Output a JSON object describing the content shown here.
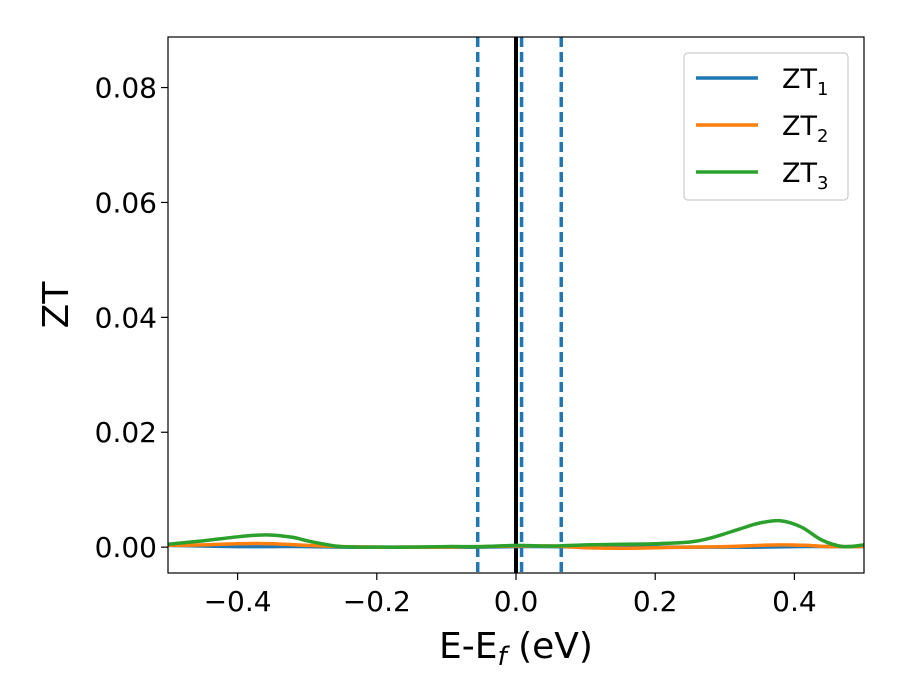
{
  "chart_data": {
    "type": "line",
    "title": "",
    "xlabel": {
      "main": "E-E",
      "sub": "f",
      "unit": " (eV)"
    },
    "ylabel": "ZT",
    "xlim": [
      -0.5,
      0.5
    ],
    "ylim": [
      -0.0045,
      0.0888
    ],
    "x_ticks": [
      {
        "value": -0.4,
        "label": "−0.4"
      },
      {
        "value": -0.2,
        "label": "−0.2"
      },
      {
        "value": 0.0,
        "label": "0.0"
      },
      {
        "value": 0.2,
        "label": "0.2"
      },
      {
        "value": 0.4,
        "label": "0.4"
      }
    ],
    "y_ticks": [
      {
        "value": 0.0,
        "label": "0.00"
      },
      {
        "value": 0.02,
        "label": "0.02"
      },
      {
        "value": 0.04,
        "label": "0.04"
      },
      {
        "value": 0.06,
        "label": "0.06"
      },
      {
        "value": 0.08,
        "label": "0.08"
      }
    ],
    "grid": false,
    "legend_position": "top-right",
    "vertical_lines": [
      {
        "x": 0.0,
        "style": "solid",
        "color": "#000000"
      },
      {
        "x": -0.055,
        "style": "dashed",
        "color": "#1f77b4"
      },
      {
        "x": 0.008,
        "style": "dashed",
        "color": "#1f77b4"
      },
      {
        "x": 0.065,
        "style": "dashed",
        "color": "#1f77b4"
      }
    ],
    "series": [
      {
        "name": "ZT",
        "sub": "1",
        "color": "#1f77b4",
        "x": [
          -0.5,
          -0.45,
          -0.4,
          -0.35,
          -0.3,
          -0.25,
          -0.2,
          -0.15,
          -0.1,
          -0.05,
          0.0,
          0.05,
          0.1,
          0.15,
          0.2,
          0.25,
          0.3,
          0.35,
          0.4,
          0.45,
          0.5
        ],
        "y": [
          0.0003,
          0.0002,
          0.0001,
          0.0001,
          0.0001,
          0.0,
          0.0,
          0.0,
          0.0,
          0.0,
          0.0001,
          0.0001,
          0.0,
          0.0,
          0.0,
          0.0,
          0.0,
          0.0,
          0.0001,
          0.0001,
          0.0001
        ]
      },
      {
        "name": "ZT",
        "sub": "2",
        "color": "#ff7f0e",
        "x": [
          -0.5,
          -0.45,
          -0.4,
          -0.35,
          -0.3,
          -0.25,
          -0.2,
          -0.15,
          -0.1,
          -0.05,
          0.0,
          0.05,
          0.1,
          0.15,
          0.2,
          0.25,
          0.3,
          0.35,
          0.38,
          0.42,
          0.45,
          0.5
        ],
        "y": [
          0.0003,
          0.0004,
          0.0006,
          0.0006,
          0.0003,
          0.0001,
          0.0,
          0.0,
          0.0,
          0.0001,
          0.0002,
          0.0002,
          -0.0001,
          -0.0002,
          -0.0001,
          0.0,
          0.0001,
          0.0003,
          0.0004,
          0.0003,
          0.0001,
          0.0001
        ]
      },
      {
        "name": "ZT",
        "sub": "3",
        "color": "#2ca02c",
        "x": [
          -0.5,
          -0.45,
          -0.4,
          -0.37,
          -0.35,
          -0.32,
          -0.3,
          -0.27,
          -0.25,
          -0.2,
          -0.15,
          -0.1,
          -0.05,
          0.0,
          0.05,
          0.1,
          0.15,
          0.2,
          0.25,
          0.28,
          0.32,
          0.35,
          0.38,
          0.41,
          0.44,
          0.47,
          0.5
        ],
        "y": [
          0.0005,
          0.0011,
          0.0018,
          0.0021,
          0.0021,
          0.0017,
          0.0011,
          0.0004,
          0.0001,
          0.0,
          0.0,
          0.0001,
          0.0001,
          0.0003,
          0.0002,
          0.0004,
          0.0005,
          0.0006,
          0.0009,
          0.0016,
          0.0031,
          0.0042,
          0.0046,
          0.0035,
          0.0012,
          0.0001,
          0.0004
        ]
      }
    ]
  }
}
